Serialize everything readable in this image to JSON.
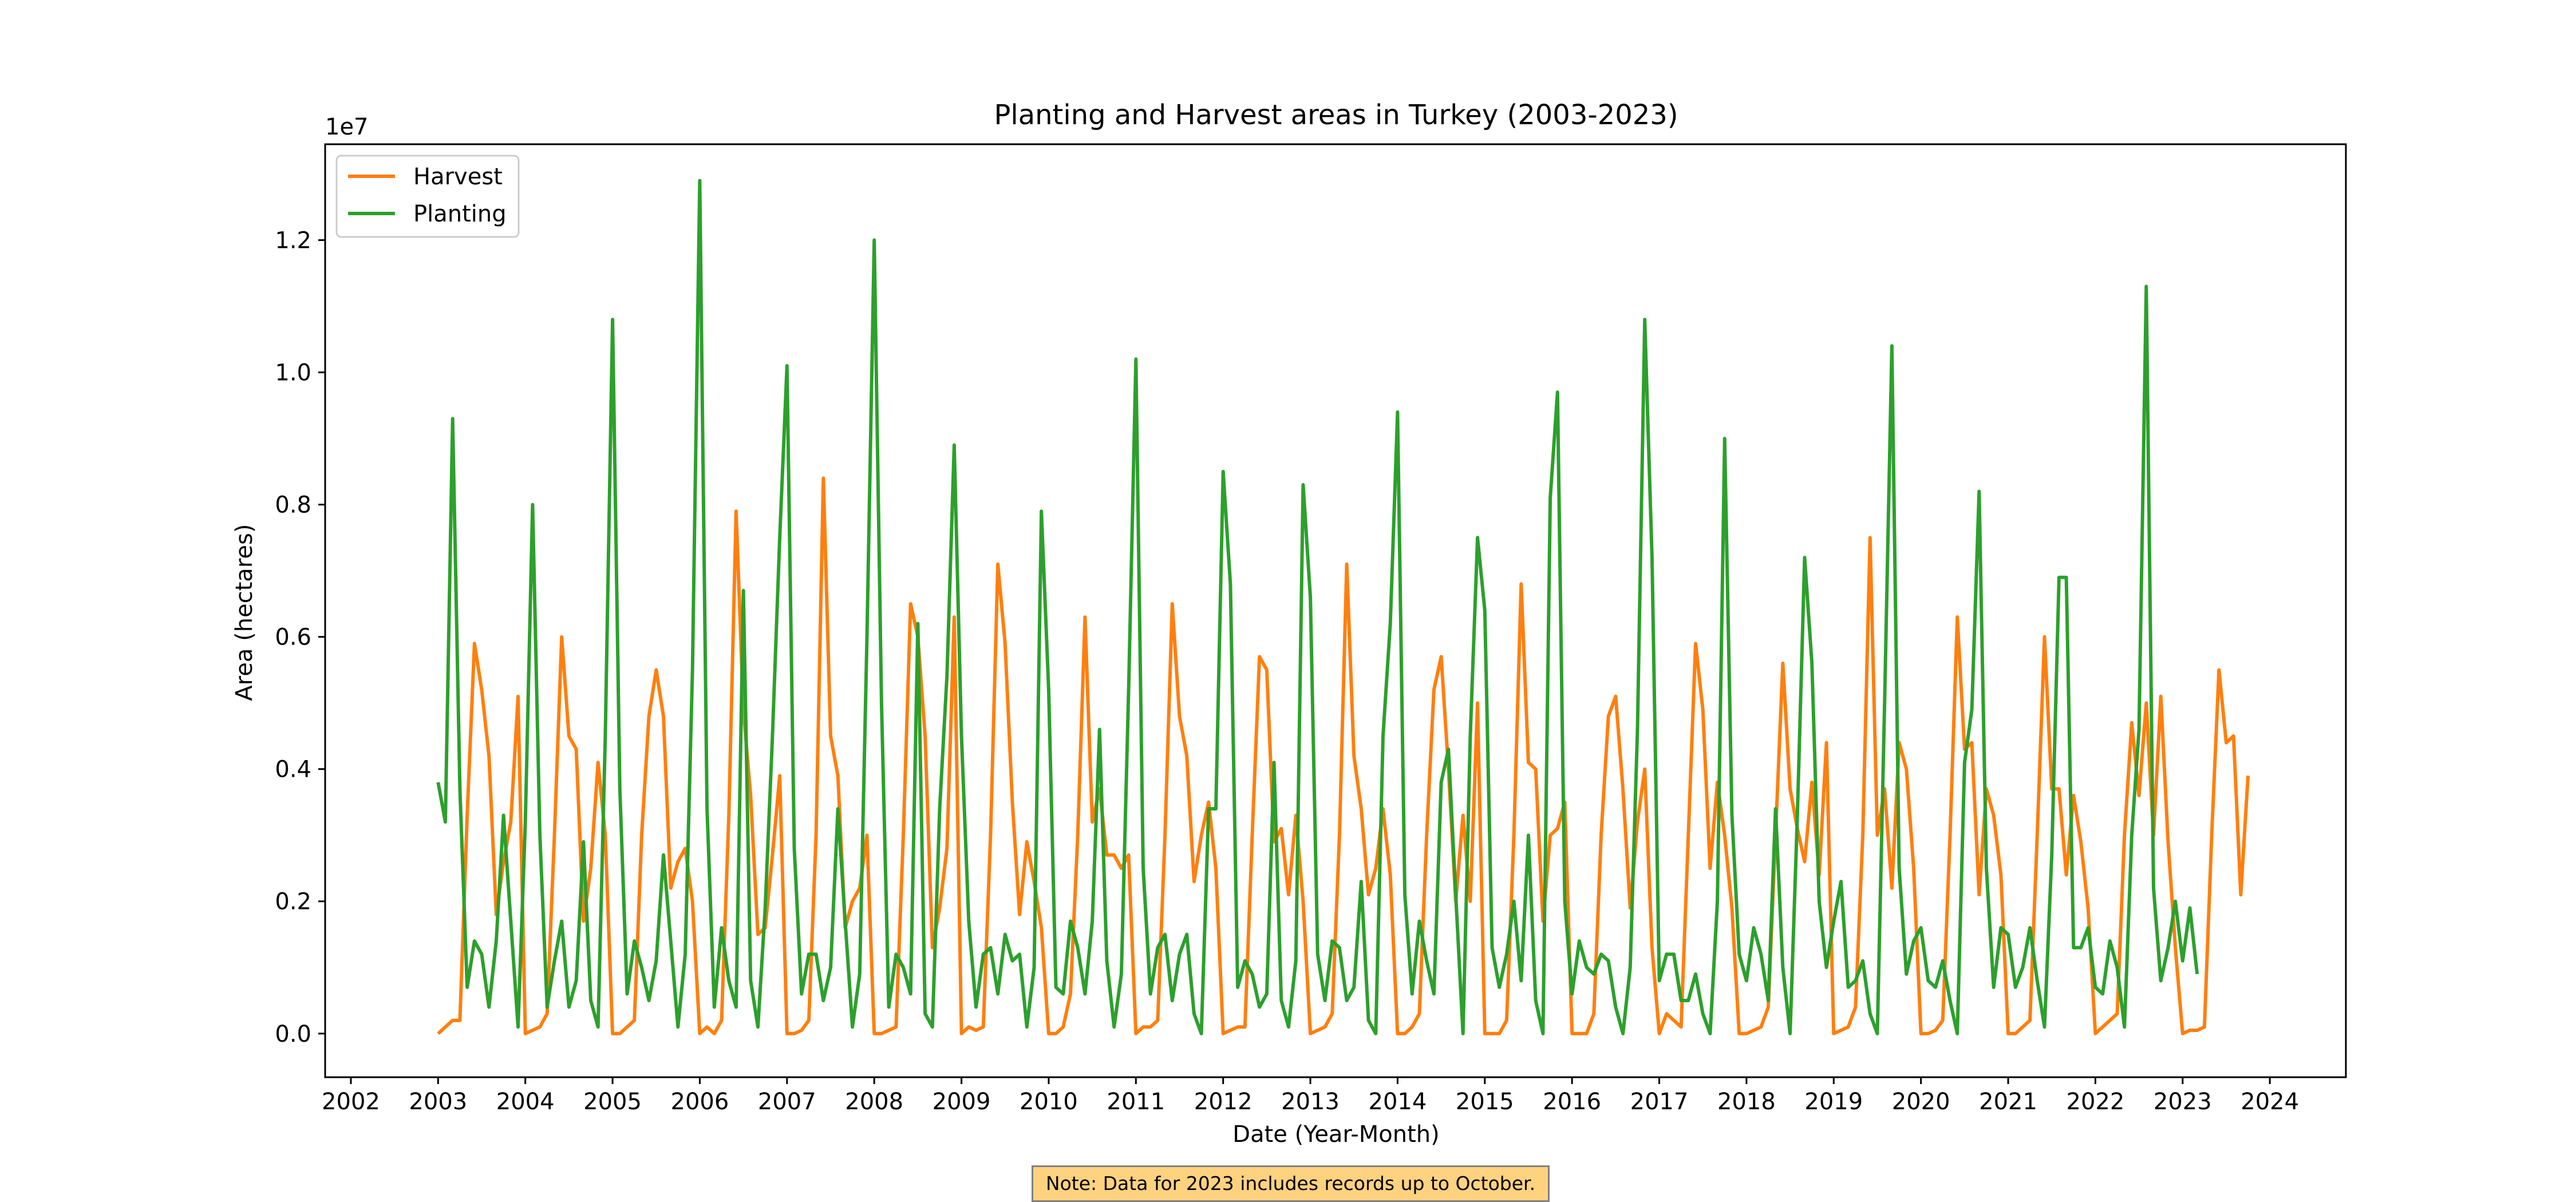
{
  "chart_data": {
    "type": "line",
    "title": "Planting and Harvest areas in Turkey (2003-2023)",
    "xlabel": "Date (Year-Month)",
    "ylabel": "Area (hectares)",
    "y_offset_label": "1e7",
    "y_multiplier": 10000000,
    "xlim": [
      "2001-09-15",
      "2024-11-15"
    ],
    "ylim": [
      -0.066,
      1.345
    ],
    "x_ticks": [
      "2002",
      "2003",
      "2004",
      "2005",
      "2006",
      "2007",
      "2008",
      "2009",
      "2010",
      "2011",
      "2012",
      "2013",
      "2014",
      "2015",
      "2016",
      "2017",
      "2018",
      "2019",
      "2020",
      "2021",
      "2022",
      "2023",
      "2024"
    ],
    "y_ticks": [
      "0.0",
      "0.2",
      "0.4",
      "0.6",
      "0.8",
      "1.0",
      "1.2"
    ],
    "legend_position": "upper-left",
    "start_month": "2003-01",
    "series": [
      {
        "name": "Harvest",
        "color": "#ff7f0e",
        "values": [
          0.0,
          0.01,
          0.02,
          0.02,
          0.33,
          0.59,
          0.52,
          0.42,
          0.18,
          0.26,
          0.32,
          0.51,
          0.0,
          0.005,
          0.01,
          0.03,
          0.3,
          0.6,
          0.45,
          0.43,
          0.17,
          0.25,
          0.41,
          0.3,
          0.0,
          0.0,
          0.01,
          0.02,
          0.3,
          0.48,
          0.55,
          0.48,
          0.22,
          0.26,
          0.28,
          0.2,
          0.0,
          0.01,
          0.0,
          0.02,
          0.33,
          0.79,
          0.49,
          0.36,
          0.15,
          0.16,
          0.27,
          0.39,
          0.0,
          0.0,
          0.005,
          0.02,
          0.3,
          0.84,
          0.45,
          0.39,
          0.16,
          0.2,
          0.22,
          0.3,
          0.0,
          0.0,
          0.005,
          0.01,
          0.3,
          0.65,
          0.6,
          0.45,
          0.13,
          0.19,
          0.28,
          0.63,
          0.0,
          0.01,
          0.005,
          0.01,
          0.3,
          0.71,
          0.59,
          0.35,
          0.18,
          0.29,
          0.23,
          0.16,
          0.0,
          0.0,
          0.01,
          0.06,
          0.3,
          0.63,
          0.32,
          0.37,
          0.27,
          0.27,
          0.25,
          0.27,
          0.0,
          0.01,
          0.01,
          0.02,
          0.3,
          0.65,
          0.48,
          0.42,
          0.23,
          0.3,
          0.35,
          0.25,
          0.0,
          0.005,
          0.01,
          0.01,
          0.3,
          0.57,
          0.55,
          0.29,
          0.31,
          0.21,
          0.33,
          0.2,
          0.0,
          0.005,
          0.01,
          0.03,
          0.3,
          0.71,
          0.42,
          0.34,
          0.21,
          0.25,
          0.34,
          0.24,
          0.0,
          0.0,
          0.01,
          0.03,
          0.3,
          0.52,
          0.57,
          0.4,
          0.2,
          0.33,
          0.2,
          0.5,
          0.0,
          0.0,
          0.0,
          0.02,
          0.3,
          0.68,
          0.41,
          0.4,
          0.17,
          0.3,
          0.31,
          0.35,
          0.0,
          0.0,
          0.0,
          0.03,
          0.3,
          0.48,
          0.51,
          0.37,
          0.19,
          0.32,
          0.4,
          0.13,
          0.0,
          0.03,
          0.02,
          0.01,
          0.3,
          0.59,
          0.49,
          0.25,
          0.38,
          0.3,
          0.19,
          0.0,
          0.0,
          0.005,
          0.01,
          0.04,
          0.3,
          0.56,
          0.37,
          0.31,
          0.26,
          0.38,
          0.24,
          0.44,
          0.0,
          0.005,
          0.01,
          0.04,
          0.3,
          0.75,
          0.3,
          0.37,
          0.22,
          0.44,
          0.4,
          0.25,
          0.0,
          0.0,
          0.005,
          0.02,
          0.3,
          0.63,
          0.43,
          0.44,
          0.21,
          0.37,
          0.33,
          0.24,
          0.0,
          0.0,
          0.01,
          0.02,
          0.3,
          0.6,
          0.37,
          0.37,
          0.24,
          0.36,
          0.29,
          0.19,
          0.0,
          0.01,
          0.02,
          0.03,
          0.3,
          0.47,
          0.36,
          0.5,
          0.3,
          0.51,
          0.29,
          0.13,
          0.0,
          0.005,
          0.005,
          0.01,
          0.3,
          0.55,
          0.44,
          0.45,
          0.21,
          0.39
        ]
      },
      {
        "name": "Planting",
        "color": "#2ca02c",
        "values": [
          0.38,
          0.32,
          0.93,
          0.37,
          0.07,
          0.14,
          0.12,
          0.04,
          0.14,
          0.33,
          0.17,
          0.01,
          0.32,
          0.8,
          0.3,
          0.04,
          0.11,
          0.17,
          0.04,
          0.08,
          0.29,
          0.05,
          0.01,
          0.45,
          1.08,
          0.37,
          0.06,
          0.14,
          0.1,
          0.05,
          0.11,
          0.27,
          0.14,
          0.01,
          0.12,
          0.55,
          1.29,
          0.34,
          0.04,
          0.16,
          0.08,
          0.04,
          0.67,
          0.08,
          0.01,
          0.19,
          0.45,
          0.75,
          1.01,
          0.28,
          0.06,
          0.12,
          0.12,
          0.05,
          0.1,
          0.34,
          0.17,
          0.01,
          0.09,
          0.6,
          1.2,
          0.5,
          0.04,
          0.12,
          0.1,
          0.06,
          0.62,
          0.03,
          0.01,
          0.34,
          0.54,
          0.89,
          0.45,
          0.17,
          0.04,
          0.12,
          0.13,
          0.06,
          0.15,
          0.11,
          0.12,
          0.01,
          0.1,
          0.79,
          0.52,
          0.07,
          0.06,
          0.17,
          0.13,
          0.06,
          0.17,
          0.46,
          0.11,
          0.01,
          0.09,
          0.52,
          1.02,
          0.25,
          0.06,
          0.13,
          0.15,
          0.05,
          0.12,
          0.15,
          0.03,
          0.0,
          0.34,
          0.34,
          0.85,
          0.68,
          0.07,
          0.11,
          0.09,
          0.04,
          0.06,
          0.41,
          0.05,
          0.01,
          0.11,
          0.83,
          0.66,
          0.12,
          0.05,
          0.14,
          0.13,
          0.05,
          0.07,
          0.23,
          0.02,
          0.0,
          0.45,
          0.62,
          0.94,
          0.21,
          0.06,
          0.17,
          0.11,
          0.06,
          0.38,
          0.43,
          0.21,
          0.0,
          0.45,
          0.75,
          0.64,
          0.13,
          0.07,
          0.12,
          0.2,
          0.08,
          0.3,
          0.05,
          0.0,
          0.81,
          0.97,
          0.2,
          0.06,
          0.14,
          0.1,
          0.09,
          0.12,
          0.11,
          0.04,
          0.0,
          0.1,
          0.46,
          1.08,
          0.72,
          0.08,
          0.12,
          0.12,
          0.05,
          0.05,
          0.09,
          0.03,
          0.0,
          0.2,
          0.9,
          0.33,
          0.12,
          0.08,
          0.16,
          0.12,
          0.05,
          0.34,
          0.1,
          0.0,
          0.33,
          0.72,
          0.56,
          0.2,
          0.1,
          0.17,
          0.23,
          0.07,
          0.08,
          0.11,
          0.03,
          0.0,
          0.5,
          1.04,
          0.25,
          0.09,
          0.14,
          0.16,
          0.08,
          0.07,
          0.11,
          0.05,
          0.0,
          0.41,
          0.49,
          0.82,
          0.25,
          0.07,
          0.16,
          0.15,
          0.07,
          0.1,
          0.16,
          0.08,
          0.01,
          0.27,
          0.69,
          0.69,
          0.13,
          0.13,
          0.16,
          0.07,
          0.06,
          0.14,
          0.1,
          0.01,
          0.3,
          0.46,
          1.13,
          0.22,
          0.08,
          0.13,
          0.2,
          0.11,
          0.19,
          0.09
        ]
      }
    ]
  },
  "note": "Note: Data for 2023 includes records up to October."
}
